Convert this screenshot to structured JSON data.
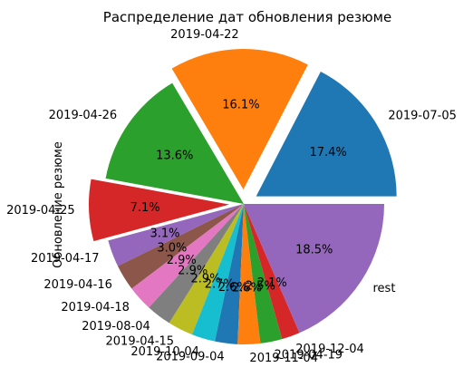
{
  "chart_data": {
    "type": "pie",
    "title": "Распределение дат обновления резюме",
    "ylabel": "Обновление резюме",
    "slices": [
      {
        "label": "2019-07-05",
        "value": 17.4,
        "pct_label": "17.4%",
        "color": "#1f77b4",
        "exploded": true
      },
      {
        "label": "2019-04-22",
        "value": 16.1,
        "pct_label": "16.1%",
        "color": "#ff7f0e",
        "exploded": true
      },
      {
        "label": "2019-04-26",
        "value": 13.6,
        "pct_label": "13.6%",
        "color": "#2ca02c",
        "exploded": false
      },
      {
        "label": "2019-04-25",
        "value": 7.1,
        "pct_label": "7.1%",
        "color": "#d62728",
        "exploded": true
      },
      {
        "label": "2019-04-17",
        "value": 3.1,
        "pct_label": "3.1%",
        "color": "#9467bd",
        "exploded": false
      },
      {
        "label": "2019-04-16",
        "value": 3.0,
        "pct_label": "3.0%",
        "color": "#8c564b",
        "exploded": false
      },
      {
        "label": "2019-04-18",
        "value": 2.9,
        "pct_label": "2.9%",
        "color": "#e377c2",
        "exploded": false
      },
      {
        "label": "2019-08-04",
        "value": 2.9,
        "pct_label": "2.9%",
        "color": "#7f7f7f",
        "exploded": false
      },
      {
        "label": "2019-04-15",
        "value": 2.9,
        "pct_label": "2.9%",
        "color": "#bcbd22",
        "exploded": false
      },
      {
        "label": "2019-10-04",
        "value": 2.7,
        "pct_label": "2.7%",
        "color": "#17becf",
        "exploded": false
      },
      {
        "label": "2019-09-04",
        "value": 2.6,
        "pct_label": "2.6%",
        "color": "#1f77b4",
        "exploded": false
      },
      {
        "label": "2019-11-04",
        "value": 2.6,
        "pct_label": "2.6%",
        "color": "#ff7f0e",
        "exploded": false
      },
      {
        "label": "2019-04-19",
        "value": 2.5,
        "pct_label": "2.5%",
        "color": "#2ca02c",
        "exploded": false
      },
      {
        "label": "2019-12-04",
        "value": 2.1,
        "pct_label": "2.1%",
        "color": "#d62728",
        "exploded": false
      },
      {
        "label": "rest",
        "value": 18.5,
        "pct_label": "18.5%",
        "color": "#9467bd",
        "exploded": false
      }
    ]
  }
}
